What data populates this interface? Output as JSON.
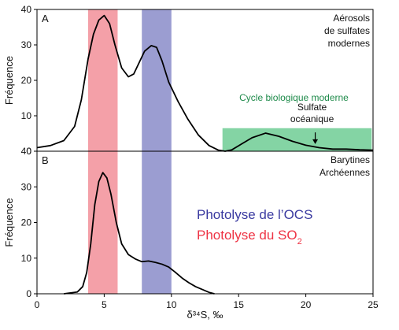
{
  "chart_data": [
    {
      "panel": "A",
      "type": "line",
      "ylabel": "Fréquence",
      "xlim": [
        0,
        25
      ],
      "ylim": [
        0,
        40
      ],
      "yticks": [
        0,
        10,
        20,
        30,
        40
      ],
      "annotations": [
        "Aérosols",
        "de sulfates",
        "modernes"
      ],
      "shaded_ranges": [
        {
          "name": "photolysis_so2",
          "x": [
            3.8,
            6.0
          ],
          "color": "#f4a0a8"
        },
        {
          "name": "photolysis_ocs",
          "x": [
            7.8,
            10.0
          ],
          "color": "#9b9dd1"
        },
        {
          "name": "biological_cycle",
          "x": [
            13.8,
            24.9
          ],
          "y": [
            0,
            6.5
          ],
          "color": "#84d4a4",
          "label": "Cycle biologique moderne",
          "label_color": "#1e8a4a"
        }
      ],
      "arrow_annotation": {
        "lines": [
          "Sulfate",
          "océanique"
        ],
        "x": 20.7,
        "y_from": 6.2,
        "y_to": 1.8
      },
      "series": [
        {
          "x": [
            0,
            1,
            2,
            2.8,
            3.3,
            3.8,
            4.2,
            4.6,
            5.0,
            5.4,
            5.8,
            6.3,
            6.8,
            7.2,
            7.6,
            8.0,
            8.5,
            8.9,
            9.3,
            9.8,
            10.5,
            11.2,
            12,
            12.8,
            13.5,
            14.0,
            14.5,
            15.2,
            16,
            17,
            18,
            19,
            20,
            21,
            22,
            23,
            24,
            25
          ],
          "y": [
            1.0,
            1.6,
            3.0,
            7.0,
            14.5,
            26.0,
            33.0,
            37.0,
            38.3,
            36.0,
            30.0,
            23.5,
            21.0,
            21.8,
            25.0,
            28.2,
            29.8,
            29.3,
            25.5,
            19.5,
            14.0,
            9.2,
            4.6,
            1.6,
            0.3,
            0.0,
            0.4,
            2.0,
            3.8,
            5.1,
            4.2,
            2.8,
            1.7,
            1.0,
            0.6,
            0.6,
            0.4,
            0.3
          ]
        }
      ]
    },
    {
      "panel": "B",
      "type": "line",
      "ylabel": "Fréquence",
      "xlabel": "δ³⁴S, ‰",
      "xlim": [
        0,
        25
      ],
      "xticks": [
        0,
        5,
        10,
        15,
        20,
        25
      ],
      "ylim": [
        0,
        40
      ],
      "yticks": [
        0,
        10,
        20,
        30,
        40
      ],
      "annotations": [
        "Barytines",
        "Archéennes"
      ],
      "legend": [
        {
          "label": "Photolyse de l’OCS",
          "color": "#3a3aa0"
        },
        {
          "label": "Photolyse du SO",
          "subscript": "2",
          "color": "#ee3344"
        }
      ],
      "shaded_ranges": [
        {
          "name": "photolysis_so2",
          "x": [
            3.8,
            6.0
          ],
          "color": "#f4a0a8"
        },
        {
          "name": "photolysis_ocs",
          "x": [
            7.8,
            10.0
          ],
          "color": "#9b9dd1"
        }
      ],
      "series": [
        {
          "x": [
            2.0,
            3.0,
            3.4,
            3.7,
            4.0,
            4.3,
            4.6,
            4.9,
            5.2,
            5.5,
            5.9,
            6.3,
            6.8,
            7.3,
            7.8,
            8.3,
            8.8,
            9.3,
            9.8,
            10.3,
            10.8,
            11.3,
            11.8,
            12.3,
            12.8,
            13.2
          ],
          "y": [
            0.0,
            0.5,
            2.0,
            6.0,
            14.0,
            25.0,
            31.5,
            34.0,
            32.5,
            28.0,
            20.0,
            14.0,
            11.0,
            9.8,
            9.0,
            9.2,
            8.8,
            8.3,
            7.5,
            6.0,
            4.4,
            3.1,
            2.0,
            1.2,
            0.4,
            0.0
          ]
        }
      ]
    }
  ]
}
